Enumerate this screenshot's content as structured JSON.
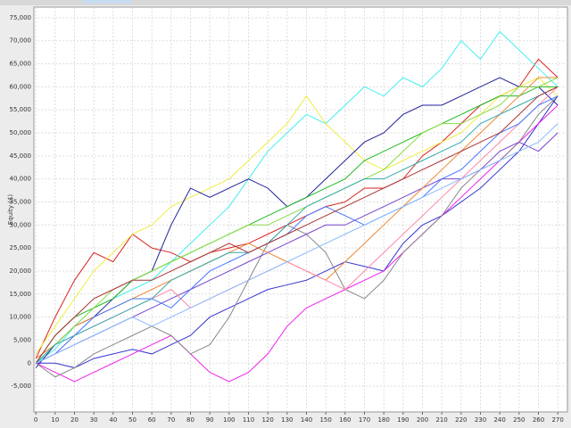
{
  "chart_data": {
    "type": "line",
    "y_label": "Equity ($)",
    "x": [
      0,
      10,
      20,
      30,
      40,
      50,
      60,
      70,
      80,
      90,
      100,
      110,
      120,
      130,
      140,
      150,
      160,
      170,
      180,
      190,
      200,
      210,
      220,
      230,
      240,
      250,
      260,
      270
    ],
    "xlim": [
      -1,
      275
    ],
    "xticks": [
      0,
      10,
      20,
      30,
      40,
      50,
      60,
      70,
      80,
      90,
      100,
      110,
      120,
      130,
      140,
      150,
      160,
      170,
      180,
      190,
      200,
      210,
      220,
      230,
      240,
      250,
      260,
      270
    ],
    "ylim": [
      -10600,
      77300
    ],
    "yticks": [
      {
        "value": -5000,
        "label": "-5,000"
      },
      0,
      {
        "value": 5000,
        "label": "5,000"
      },
      {
        "value": 10000,
        "label": "10,000"
      },
      {
        "value": 15000,
        "label": "15,000"
      },
      {
        "value": 20000,
        "label": "20,000"
      },
      {
        "value": 25000,
        "label": "25,000"
      },
      {
        "value": 30000,
        "label": "30,000"
      },
      {
        "value": 35000,
        "label": "35,000"
      },
      {
        "value": 40000,
        "label": "40,000"
      },
      {
        "value": 45000,
        "label": "45,000"
      },
      {
        "value": 50000,
        "label": "50,000"
      },
      {
        "value": 55000,
        "label": "55,000"
      },
      {
        "value": 60000,
        "label": "60,000"
      },
      {
        "value": 65000,
        "label": "65,000"
      },
      {
        "value": 70000,
        "label": "70,000"
      },
      {
        "value": 75000,
        "label": "75,000"
      }
    ],
    "grid": true,
    "series": [
      {
        "color": "#3535d0",
        "values": [
          0,
          0,
          -1000,
          1000,
          2000,
          3000,
          2000,
          4000,
          6000,
          10000,
          12000,
          14000,
          16000,
          17000,
          18000,
          20000,
          22000,
          21000,
          20000,
          26000,
          30000,
          32000,
          35000,
          38000,
          42000,
          46000,
          52000,
          58000
        ]
      },
      {
        "color": "#dd2222",
        "values": [
          1000,
          10000,
          18000,
          24000,
          22000,
          28000,
          25000,
          24000,
          22000,
          24000,
          25000,
          26000,
          28000,
          30000,
          32000,
          34000,
          35000,
          38000,
          38000,
          40000,
          45000,
          48000,
          52000,
          56000,
          58000,
          60000,
          66000,
          62000
        ]
      },
      {
        "color": "#44eeee",
        "values": [
          0,
          3000,
          8000,
          12000,
          14000,
          16000,
          18000,
          22000,
          26000,
          30000,
          34000,
          40000,
          46000,
          50000,
          54000,
          52000,
          56000,
          60000,
          58000,
          62000,
          60000,
          64000,
          70000,
          66000,
          72000,
          68000,
          64000,
          60000
        ]
      },
      {
        "color": "#eeee44",
        "values": [
          2000,
          8000,
          14000,
          20000,
          24000,
          28000,
          30000,
          34000,
          36000,
          38000,
          40000,
          44000,
          48000,
          52000,
          58000,
          52000,
          48000,
          44000,
          42000,
          44000,
          46000,
          48000,
          50000,
          54000,
          58000,
          60000,
          62000,
          58000
        ]
      },
      {
        "color": "#222299",
        "values": [
          -1000,
          4000,
          8000,
          10000,
          14000,
          18000,
          20000,
          30000,
          38000,
          36000,
          38000,
          40000,
          38000,
          34000,
          36000,
          40000,
          44000,
          48000,
          50000,
          54000,
          56000,
          56000,
          58000,
          60000,
          62000,
          60000,
          60000,
          56000
        ]
      },
      {
        "color": "#ee22ee",
        "values": [
          0,
          -2000,
          -4000,
          -2000,
          0,
          2000,
          4000,
          6000,
          2000,
          -2000,
          -4000,
          -2000,
          2000,
          8000,
          12000,
          14000,
          16000,
          18000,
          20000,
          24000,
          28000,
          32000,
          36000,
          40000,
          44000,
          48000,
          52000,
          56000
        ]
      },
      {
        "color": "#888888",
        "values": [
          0,
          -3000,
          -1000,
          2000,
          4000,
          6000,
          8000,
          6000,
          2000,
          4000,
          10000,
          18000,
          26000,
          30000,
          28000,
          24000,
          16000,
          14000,
          18000,
          24000,
          28000,
          32000,
          38000,
          42000,
          44000,
          48000,
          54000,
          58000
        ]
      },
      {
        "color": "#22bb22",
        "values": [
          0,
          6000,
          10000,
          12000,
          14000,
          18000,
          20000,
          22000,
          24000,
          26000,
          28000,
          30000,
          32000,
          34000,
          36000,
          38000,
          40000,
          44000,
          46000,
          48000,
          50000,
          52000,
          54000,
          56000,
          58000,
          58000,
          60000,
          60000
        ]
      },
      {
        "color": "#7744cc",
        "values": [
          0,
          2000,
          4000,
          6000,
          8000,
          10000,
          12000,
          14000,
          16000,
          18000,
          20000,
          22000,
          24000,
          26000,
          28000,
          30000,
          30000,
          32000,
          34000,
          36000,
          38000,
          40000,
          40000,
          42000,
          46000,
          48000,
          46000,
          50000
        ]
      },
      {
        "color": "#ee8833",
        "values": [
          1000,
          4000,
          8000,
          10000,
          12000,
          14000,
          16000,
          18000,
          20000,
          22000,
          24000,
          26000,
          24000,
          22000,
          20000,
          18000,
          22000,
          26000,
          30000,
          34000,
          38000,
          42000,
          46000,
          50000,
          54000,
          58000,
          62000,
          62000
        ]
      },
      {
        "color": "#ff88aa",
        "values": [
          0,
          2000,
          6000,
          8000,
          10000,
          12000,
          14000,
          16000,
          12000,
          14000,
          16000,
          18000,
          20000,
          22000,
          20000,
          18000,
          16000,
          20000,
          24000,
          28000,
          32000,
          36000,
          40000,
          44000,
          48000,
          52000,
          56000,
          60000
        ]
      },
      {
        "color": "#88dd44",
        "values": [
          0,
          4000,
          8000,
          12000,
          16000,
          18000,
          20000,
          22000,
          24000,
          26000,
          28000,
          30000,
          30000,
          32000,
          34000,
          36000,
          38000,
          40000,
          42000,
          46000,
          50000,
          52000,
          52000,
          54000,
          56000,
          60000,
          60000,
          62000
        ]
      },
      {
        "color": "#4477ff",
        "values": [
          0,
          2000,
          6000,
          10000,
          12000,
          14000,
          14000,
          12000,
          16000,
          20000,
          22000,
          24000,
          26000,
          28000,
          32000,
          34000,
          32000,
          30000,
          32000,
          34000,
          36000,
          40000,
          42000,
          46000,
          50000,
          52000,
          56000,
          58000
        ]
      },
      {
        "color": "#33aaaa",
        "values": [
          0,
          4000,
          6000,
          8000,
          10000,
          12000,
          14000,
          18000,
          20000,
          22000,
          24000,
          24000,
          26000,
          30000,
          34000,
          36000,
          38000,
          40000,
          40000,
          42000,
          44000,
          46000,
          48000,
          52000,
          54000,
          56000,
          58000,
          60000
        ]
      },
      {
        "color": "#aa3333",
        "values": [
          0,
          6000,
          10000,
          14000,
          16000,
          18000,
          18000,
          20000,
          22000,
          24000,
          26000,
          24000,
          26000,
          28000,
          30000,
          32000,
          34000,
          36000,
          38000,
          40000,
          42000,
          44000,
          46000,
          48000,
          50000,
          54000,
          58000,
          60000
        ]
      },
      {
        "color": "#88bbff",
        "values": [
          0,
          2000,
          4000,
          6000,
          8000,
          10000,
          8000,
          10000,
          12000,
          14000,
          16000,
          18000,
          20000,
          22000,
          24000,
          26000,
          28000,
          30000,
          32000,
          34000,
          36000,
          38000,
          40000,
          42000,
          44000,
          46000,
          48000,
          52000
        ]
      }
    ]
  }
}
